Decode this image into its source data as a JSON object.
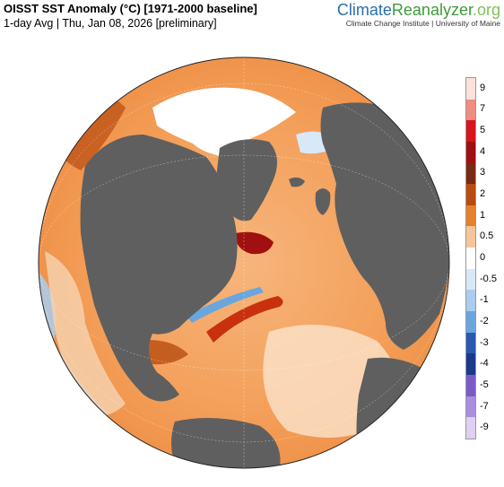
{
  "header": {
    "title": "OISST SST Anomaly (°C) [1971-2000 baseline]",
    "subtitle": "1-day Avg | Thu, Jan 08, 2026 [preliminary]"
  },
  "brand": {
    "climate": "Climate",
    "reanalyzer": "Reanalyzer",
    "org": ".org",
    "institute": "Climate Change Institute | University of Maine"
  },
  "colors": {
    "ocean_warm": "#f4a15c",
    "ocean_hot": "#c8300e",
    "ocean_cool": "#a9cdee",
    "land": "#5f5f5f",
    "ice": "#ffffff"
  },
  "legend": {
    "ticks": [
      "9",
      "7",
      "5",
      "4",
      "3",
      "2",
      "1",
      "0.5",
      "0",
      "-0.5",
      "-1",
      "-2",
      "-3",
      "-4",
      "-5",
      "-7",
      "-9"
    ],
    "colors": [
      "#fbe1dc",
      "#f08c80",
      "#d8141c",
      "#a01010",
      "#7a2a10",
      "#b84c10",
      "#e6802a",
      "#f6c59a",
      "#ffffff",
      "#d8e8f8",
      "#a9cdee",
      "#6aa6de",
      "#2a58b0",
      "#1c3a8c",
      "#7a5cc8",
      "#a88ee0",
      "#ded0f0"
    ]
  },
  "map": {
    "projection": "orthographic",
    "center": "North Atlantic"
  }
}
